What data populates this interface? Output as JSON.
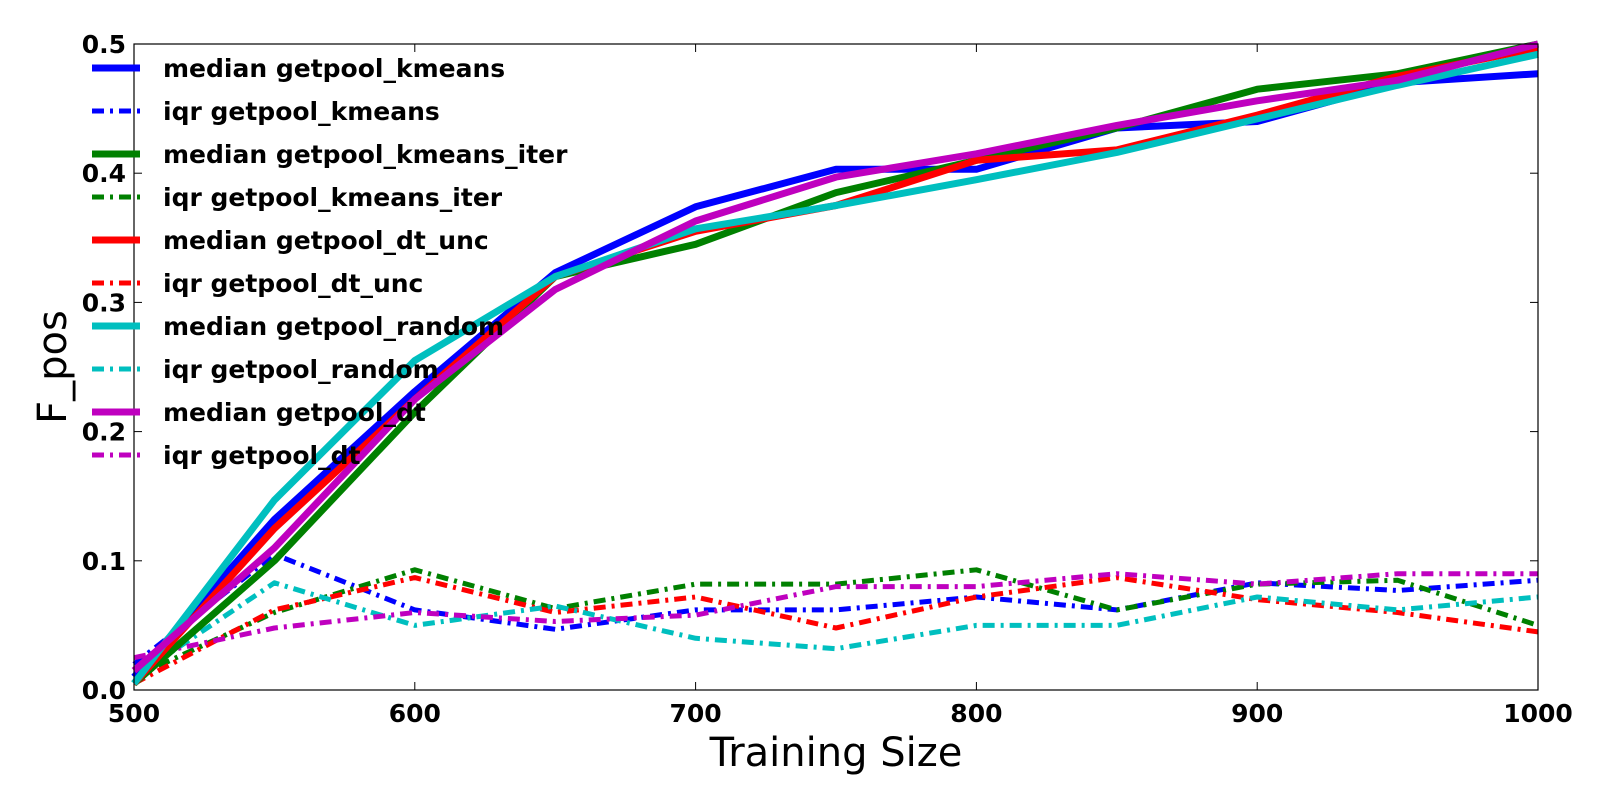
{
  "chart_data": {
    "type": "line",
    "title": "",
    "xlabel": "Training Size",
    "ylabel": "F_pos",
    "xlim": [
      500,
      1000
    ],
    "ylim": [
      0.0,
      0.5
    ],
    "xticks": [
      "500",
      "600",
      "700",
      "800",
      "900",
      "1000"
    ],
    "yticks": [
      "0.0",
      "0.1",
      "0.2",
      "0.3",
      "0.4",
      "0.5"
    ],
    "grid": false,
    "legend_position": "top-left",
    "x": [
      500,
      550,
      600,
      650,
      700,
      750,
      800,
      850,
      900,
      950,
      1000
    ],
    "series": [
      {
        "name": "median getpool_kmeans",
        "color": "#0000ff",
        "style": "solid",
        "values": [
          0.01,
          0.132,
          0.231,
          0.323,
          0.374,
          0.403,
          0.403,
          0.435,
          0.44,
          0.47,
          0.477
        ]
      },
      {
        "name": "iqr getpool_kmeans",
        "color": "#0000ff",
        "style": "dashdot",
        "values": [
          0.02,
          0.105,
          0.062,
          0.047,
          0.062,
          0.062,
          0.072,
          0.062,
          0.083,
          0.077,
          0.085
        ]
      },
      {
        "name": "median getpool_kmeans_iter",
        "color": "#008000",
        "style": "solid",
        "values": [
          0.005,
          0.1,
          0.215,
          0.32,
          0.345,
          0.385,
          0.41,
          0.435,
          0.465,
          0.477,
          0.5
        ]
      },
      {
        "name": "iqr getpool_kmeans_iter",
        "color": "#008000",
        "style": "dashdot",
        "values": [
          0.01,
          0.06,
          0.093,
          0.063,
          0.082,
          0.082,
          0.093,
          0.062,
          0.082,
          0.085,
          0.05
        ]
      },
      {
        "name": "median getpool_dt_unc",
        "color": "#ff0000",
        "style": "solid",
        "values": [
          0.005,
          0.125,
          0.225,
          0.32,
          0.355,
          0.375,
          0.41,
          0.418,
          0.445,
          0.475,
          0.497
        ]
      },
      {
        "name": "iqr getpool_dt_unc",
        "color": "#ff0000",
        "style": "dashdot",
        "values": [
          0.005,
          0.062,
          0.087,
          0.06,
          0.072,
          0.048,
          0.072,
          0.087,
          0.07,
          0.06,
          0.045
        ]
      },
      {
        "name": "median getpool_random",
        "color": "#00bfbf",
        "style": "solid",
        "values": [
          0.005,
          0.147,
          0.255,
          0.32,
          0.357,
          0.375,
          0.395,
          0.416,
          0.442,
          0.468,
          0.492
        ]
      },
      {
        "name": "iqr getpool_random",
        "color": "#00bfbf",
        "style": "dashdot",
        "values": [
          0.01,
          0.083,
          0.05,
          0.065,
          0.04,
          0.032,
          0.05,
          0.05,
          0.072,
          0.062,
          0.072
        ]
      },
      {
        "name": "median getpool_dt",
        "color": "#bf00bf",
        "style": "solid",
        "values": [
          0.015,
          0.11,
          0.225,
          0.31,
          0.363,
          0.397,
          0.415,
          0.437,
          0.456,
          0.472,
          0.5
        ]
      },
      {
        "name": "iqr getpool_dt",
        "color": "#bf00bf",
        "style": "dashdot",
        "values": [
          0.025,
          0.048,
          0.06,
          0.053,
          0.058,
          0.08,
          0.08,
          0.09,
          0.082,
          0.09,
          0.09
        ]
      }
    ]
  }
}
